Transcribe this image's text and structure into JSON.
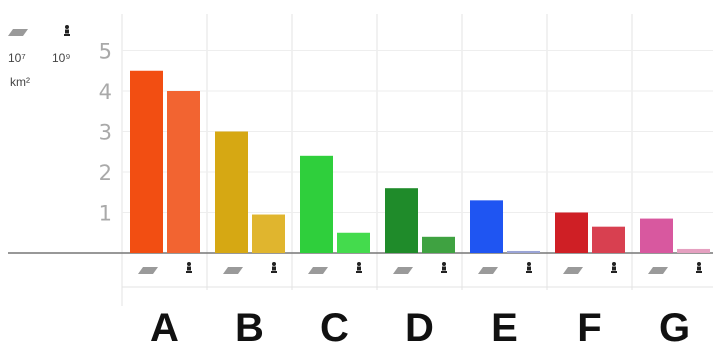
{
  "chart_data": {
    "type": "bar",
    "categories": [
      "A",
      "B",
      "C",
      "D",
      "E",
      "F",
      "G"
    ],
    "series": [
      {
        "icon": "area-parallelogram-icon",
        "values": [
          4.5,
          3.0,
          2.4,
          1.6,
          1.3,
          1.0,
          0.85
        ]
      },
      {
        "icon": "population-person-icon",
        "values": [
          4.0,
          0.95,
          0.5,
          0.4,
          0.05,
          0.65,
          0.1
        ]
      }
    ],
    "colors": [
      [
        "#f24e12",
        "#f26431"
      ],
      [
        "#d6a813",
        "#e0b52e"
      ],
      [
        "#2fcf3c",
        "#44db4d"
      ],
      [
        "#1f8b2a",
        "#3fa241"
      ],
      [
        "#1f55f2",
        "#9aa4d6"
      ],
      [
        "#cf1f25",
        "#d84050"
      ],
      [
        "#d8589f",
        "#e5a0c0"
      ]
    ],
    "yticks": [
      "1",
      "2",
      "3",
      "4",
      "5"
    ],
    "ylim": [
      0,
      5.3
    ],
    "unit_labels": {
      "area_exp": "10⁷",
      "area_unit": "km²",
      "pop_exp": "10⁹"
    },
    "legend_placement": "top-left",
    "grid": true
  }
}
